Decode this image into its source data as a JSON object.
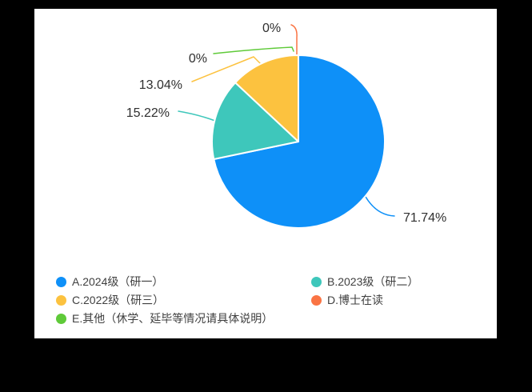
{
  "canvas": {
    "frame_color": "#000000",
    "card_color": "#ffffff"
  },
  "chart_data": {
    "type": "pie",
    "title": "",
    "direction": "clockwise",
    "start_angle": "top",
    "legend_position": "bottom",
    "label_text_color": "#2f2f2f",
    "legend_text_color": "#3f3f3f",
    "slices": [
      {
        "key": "a",
        "label": "A.2024级（研一）",
        "value_pct": 71.74,
        "display_pct": "71.74%",
        "color": "#0e90f8"
      },
      {
        "key": "b",
        "label": "B.2023级（研二）",
        "value_pct": 15.22,
        "display_pct": "15.22%",
        "color": "#3ec7bb"
      },
      {
        "key": "c",
        "label": "C.2022级（研三）",
        "value_pct": 13.04,
        "display_pct": "13.04%",
        "color": "#fcc23f"
      },
      {
        "key": "d",
        "label": "D.博士在读",
        "value_pct": 0,
        "display_pct": "0%",
        "color": "#fa7444"
      },
      {
        "key": "e",
        "label": "E.其他（休学、延毕等情况请具体说明）",
        "value_pct": 0,
        "display_pct": "0%",
        "color": "#5fca39"
      }
    ]
  }
}
